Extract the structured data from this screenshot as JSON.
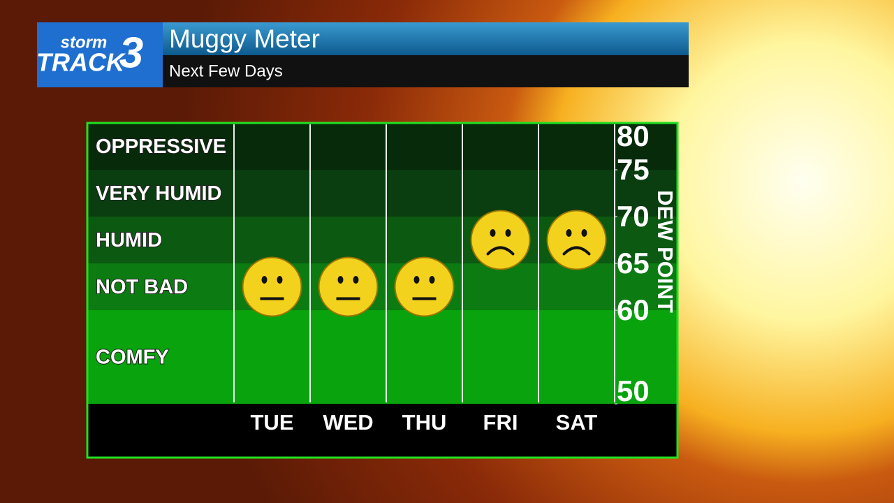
{
  "header": {
    "logo_top": "storm",
    "logo_main": "TRACK",
    "logo_number": "3"
  },
  "chart_data": {
    "type": "muggy-meter",
    "title": "Muggy Meter",
    "subtitle": "Next Few Days",
    "categories": [
      "TUE",
      "WED",
      "THU",
      "FRI",
      "SAT"
    ],
    "values": [
      62.5,
      62.5,
      62.5,
      67.5,
      67.5
    ],
    "ylim": [
      50,
      80
    ],
    "yticks": [
      50,
      60,
      65,
      70,
      75,
      80
    ],
    "y_label": "DEW POINT",
    "levels": [
      {
        "label": "OPPRESSIVE",
        "from": 75,
        "to": 80,
        "color": "#062a0a"
      },
      {
        "label": "VERY HUMID",
        "from": 70,
        "to": 75,
        "color": "#0a3d0f"
      },
      {
        "label": "HUMID",
        "from": 65,
        "to": 70,
        "color": "#0c5912"
      },
      {
        "label": "NOT BAD",
        "from": 60,
        "to": 65,
        "color": "#0b7b12"
      },
      {
        "label": "COMFY",
        "from": 50,
        "to": 60,
        "color": "#08a30d"
      }
    ],
    "color": "#f2d21c"
  }
}
